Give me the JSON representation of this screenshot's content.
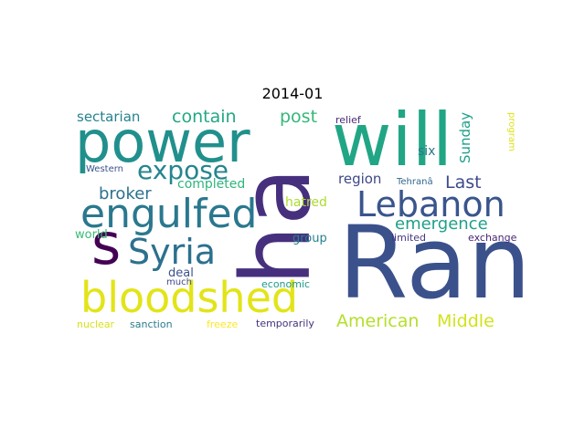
{
  "title": "2014-01",
  "words": {
    "ran": "Ran",
    "ha": "ha",
    "will": "will",
    "power": "power",
    "bloodshed": "bloodshed",
    "engulfed": "engulfed",
    "lebanon": "Lebanon",
    "syria": "Syria",
    "s": "s",
    "expose": "expose",
    "contain": "contain",
    "post": "post",
    "sectarian": "sectarian",
    "broker": "broker",
    "american": "American",
    "middle": "Middle",
    "emergence": "emergence",
    "last": "Last",
    "region": "region",
    "sunday": "Sunday",
    "six": "six",
    "completed": "completed",
    "hatred": "hatred",
    "world": "world",
    "group": "group",
    "deal": "deal",
    "limited": "limited",
    "exchange": "exchange",
    "economic": "economic",
    "much": "much",
    "nuclear": "nuclear",
    "sanction": "sanction",
    "freeze": "freeze",
    "temporarily": "temporarily",
    "western": "Western",
    "tehran": "Tehranâ",
    "relief": "relief",
    "program": "program"
  }
}
